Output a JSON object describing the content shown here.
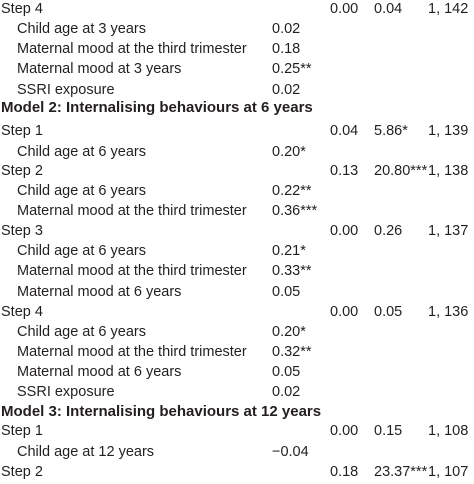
{
  "rows": [
    {
      "type": "step",
      "label": "Step 4",
      "r2": "0.00",
      "f": "0.04",
      "df": "1, 142"
    },
    {
      "type": "var",
      "label": "Child age at 3 years",
      "beta": "0.02"
    },
    {
      "type": "var",
      "label": "Maternal mood at the third trimester",
      "beta": "0.18"
    },
    {
      "type": "var",
      "label": "Maternal mood at 3 years",
      "beta": "0.25**"
    },
    {
      "type": "var",
      "label": "SSRI exposure",
      "beta": "0.02"
    },
    {
      "type": "model",
      "label": "Model 2: Internalising behaviours at 6 years"
    },
    {
      "type": "step",
      "label": "Step 1",
      "r2": "0.04",
      "f": "5.86*",
      "df": "1, 139"
    },
    {
      "type": "var",
      "label": "Child age at 6 years",
      "beta": "0.20*"
    },
    {
      "type": "step",
      "label": "Step 2",
      "r2": "0.13",
      "f": "20.80***",
      "df": "1, 138"
    },
    {
      "type": "var",
      "label": "Child age at 6 years",
      "beta": "0.22**"
    },
    {
      "type": "var",
      "label": "Maternal mood at the third trimester",
      "beta": "0.36***"
    },
    {
      "type": "step",
      "label": "Step 3",
      "r2": "0.00",
      "f": "0.26",
      "df": "1, 137"
    },
    {
      "type": "var",
      "label": "Child age at 6 years",
      "beta": "0.21*"
    },
    {
      "type": "var",
      "label": "Maternal mood at the third trimester",
      "beta": "0.33**"
    },
    {
      "type": "var",
      "label": "Maternal mood at 6 years",
      "beta": "0.05"
    },
    {
      "type": "step",
      "label": "Step 4",
      "r2": "0.00",
      "f": "0.05",
      "df": "1, 136"
    },
    {
      "type": "var",
      "label": "Child age at 6 years",
      "beta": "0.20*"
    },
    {
      "type": "var",
      "label": "Maternal mood at the third trimester",
      "beta": "0.32**"
    },
    {
      "type": "var",
      "label": "Maternal mood at 6 years",
      "beta": "0.05"
    },
    {
      "type": "var",
      "label": "SSRI exposure",
      "beta": "0.02"
    },
    {
      "type": "model",
      "label": "Model 3: Internalising behaviours at 12 years"
    },
    {
      "type": "step",
      "label": "Step 1",
      "r2": "0.00",
      "f": "0.15",
      "df": "1, 108"
    },
    {
      "type": "var",
      "label": "Child age at 12 years",
      "beta": "−0.04"
    },
    {
      "type": "step",
      "label": "Step 2",
      "r2": "0.18",
      "f": "23.37***",
      "df": "1, 107"
    }
  ]
}
